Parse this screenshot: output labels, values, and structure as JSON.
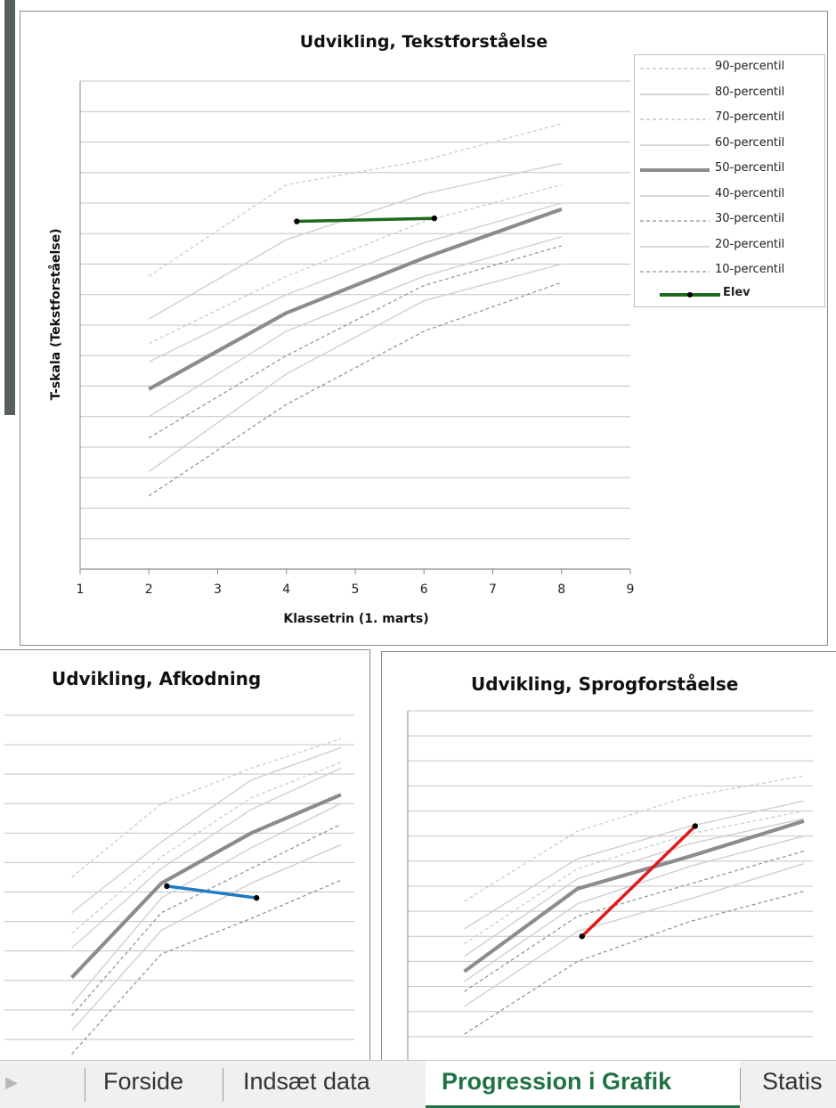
{
  "colors": {
    "percentile_line": "#d0d0d0",
    "median_line": "#8c8c8c",
    "elev_tekst": "#1e6b1e",
    "elev_afkodning": "#1f7cc1",
    "elev_sprog": "#e0191b",
    "active_tab": "#217346"
  },
  "legend": {
    "items": [
      {
        "label": "90-percentil",
        "style": "dashed"
      },
      {
        "label": "80-percentil",
        "style": "solid"
      },
      {
        "label": "70-percentil",
        "style": "dashed"
      },
      {
        "label": "60-percentil",
        "style": "solid"
      },
      {
        "label": "50-percentil",
        "style": "median"
      },
      {
        "label": "40-percentil",
        "style": "solid"
      },
      {
        "label": "30-percentil",
        "style": "dashed-dark"
      },
      {
        "label": "20-percentil",
        "style": "solid"
      },
      {
        "label": "10-percentil",
        "style": "dashed-dark"
      },
      {
        "label": "Elev",
        "style": "elev"
      }
    ]
  },
  "chart_data": [
    {
      "type": "line",
      "title": "Udvikling, Tekstforståelse",
      "xlabel": "Klassetrin (1. marts)",
      "ylabel": "T-skala (Tekstforståelse)",
      "xlim": [
        1,
        9
      ],
      "ylim": [
        0,
        16
      ],
      "xticks": [
        "1",
        "2",
        "3",
        "4",
        "5",
        "6",
        "7",
        "8",
        "9"
      ],
      "grid": true,
      "legend_position": "right",
      "x": [
        2,
        4,
        6,
        8
      ],
      "series": [
        {
          "name": "90-percentil",
          "values": [
            9.6,
            12.6,
            13.4,
            14.6
          ]
        },
        {
          "name": "80-percentil",
          "values": [
            8.2,
            10.8,
            12.3,
            13.3
          ]
        },
        {
          "name": "70-percentil",
          "values": [
            7.4,
            9.6,
            11.4,
            12.6
          ]
        },
        {
          "name": "60-percentil",
          "values": [
            6.8,
            9.0,
            10.7,
            12.0
          ]
        },
        {
          "name": "50-percentil",
          "values": [
            5.9,
            8.4,
            10.2,
            11.8
          ]
        },
        {
          "name": "40-percentil",
          "values": [
            5.0,
            7.8,
            9.6,
            10.9
          ]
        },
        {
          "name": "30-percentil",
          "values": [
            4.3,
            7.0,
            9.3,
            10.6
          ]
        },
        {
          "name": "20-percentil",
          "values": [
            3.2,
            6.4,
            8.8,
            10.0
          ]
        },
        {
          "name": "10-percentil",
          "values": [
            2.4,
            5.4,
            7.8,
            9.4
          ]
        },
        {
          "name": "Elev",
          "x": [
            4.15,
            6.15
          ],
          "values": [
            11.4,
            11.5
          ]
        }
      ]
    },
    {
      "type": "line",
      "title": "Udvikling, Afkodning",
      "x": [
        1,
        2,
        3,
        4
      ],
      "ylim": [
        0,
        12
      ],
      "series": [
        {
          "name": "90-percentil",
          "values": [
            6.5,
            9.0,
            10.2,
            11.2
          ]
        },
        {
          "name": "80-percentil",
          "values": [
            5.3,
            7.7,
            9.8,
            10.9
          ]
        },
        {
          "name": "70-percentil",
          "values": [
            4.6,
            7.2,
            9.2,
            10.4
          ]
        },
        {
          "name": "60-percentil",
          "values": [
            4.1,
            6.8,
            8.8,
            10.2
          ]
        },
        {
          "name": "50-percentil",
          "values": [
            3.1,
            6.3,
            8.0,
            9.3
          ]
        },
        {
          "name": "40-percentil",
          "values": [
            2.2,
            5.8,
            7.5,
            9.0
          ]
        },
        {
          "name": "30-percentil",
          "values": [
            1.8,
            5.3,
            6.8,
            8.3
          ]
        },
        {
          "name": "20-percentil",
          "values": [
            1.3,
            4.7,
            6.3,
            7.6
          ]
        },
        {
          "name": "10-percentil",
          "values": [
            0.5,
            3.9,
            5.1,
            6.4
          ]
        },
        {
          "name": "Elev",
          "x": [
            2.06,
            3.06
          ],
          "values": [
            6.2,
            5.8
          ]
        }
      ]
    },
    {
      "type": "line",
      "title": "Udvikling, Sprogforståelse",
      "x": [
        1,
        2,
        3,
        4
      ],
      "ylim": [
        0,
        14
      ],
      "series": [
        {
          "name": "90-percentil",
          "values": [
            6.4,
            9.2,
            10.6,
            11.4
          ]
        },
        {
          "name": "80-percentil",
          "values": [
            5.3,
            8.1,
            9.4,
            10.4
          ]
        },
        {
          "name": "70-percentil",
          "values": [
            4.7,
            7.7,
            9.1,
            10.0
          ]
        },
        {
          "name": "60-percentil",
          "values": [
            4.2,
            7.3,
            8.7,
            9.7
          ]
        },
        {
          "name": "50-percentil",
          "values": [
            3.6,
            6.9,
            8.2,
            9.6
          ]
        },
        {
          "name": "40-percentil",
          "values": [
            3.2,
            6.3,
            7.8,
            9.0
          ]
        },
        {
          "name": "30-percentil",
          "values": [
            2.8,
            5.8,
            7.1,
            8.4
          ]
        },
        {
          "name": "20-percentil",
          "values": [
            2.2,
            5.2,
            6.5,
            7.9
          ]
        },
        {
          "name": "10-percentil",
          "values": [
            1.1,
            4.0,
            5.6,
            6.8
          ]
        },
        {
          "name": "Elev",
          "x": [
            2.04,
            3.04
          ],
          "values": [
            5.0,
            9.4
          ]
        }
      ]
    }
  ],
  "tabs": [
    {
      "label": "Forside",
      "active": false
    },
    {
      "label": "Indsæt data",
      "active": false
    },
    {
      "label": "Progression i Grafik",
      "active": true
    },
    {
      "label": "Statis",
      "active": false
    }
  ]
}
